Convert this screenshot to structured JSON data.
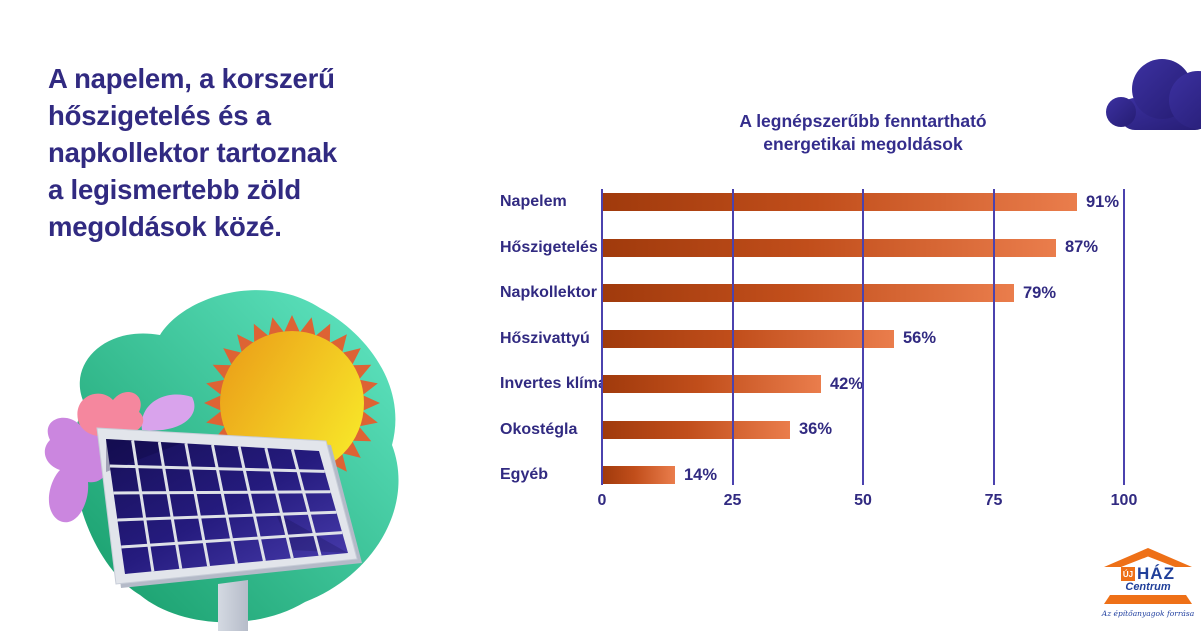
{
  "headline_lines": [
    "A napelem, a korszerű",
    "hőszigetelés és a",
    "napkollektor tartoznak",
    "a legismertebb zöld",
    "megoldások közé."
  ],
  "chart_data": {
    "type": "bar",
    "orientation": "horizontal",
    "title": "A legnépszerűbb fenntartható energetikai megoldások",
    "title_lines": [
      "A legnépszerűbb fenntartható",
      "energetikai megoldások"
    ],
    "categories": [
      "Napelem",
      "Hőszigetelés",
      "Napkollektor",
      "Hőszivattyú",
      "Invertes klíma",
      "Okostégla",
      "Egyéb"
    ],
    "values": [
      91,
      87,
      79,
      56,
      42,
      36,
      14
    ],
    "value_labels": [
      "91%",
      "87%",
      "79%",
      "56%",
      "42%",
      "36%",
      "14%"
    ],
    "xlim": [
      0,
      100
    ],
    "xticks": [
      0,
      25,
      50,
      75,
      100
    ],
    "grid": true,
    "legend": "none"
  },
  "illustration": {
    "elements": [
      "green-blob",
      "pink-leaves",
      "purple-leaves",
      "sun-icon",
      "solar-panel-icon",
      "panel-pole"
    ]
  },
  "decor": {
    "cloud_icon": "cloud-icon"
  },
  "logo": {
    "line1_prefix": "ÚJ",
    "line1_main": "HÁZ",
    "line2": "Centrum",
    "tagline": "Az építőanyagok forrása"
  },
  "colors": {
    "text_indigo": "#312A81",
    "gridline": "#4B42AE",
    "bar_gradient_start": "#A03A0C",
    "bar_gradient_end": "#EA7D4C",
    "blob_green_dark": "#149A67",
    "blob_green_light": "#63E8C5",
    "sun_gold": "#EBA019",
    "sun_yellow": "#F8E829",
    "sun_rays": "#DD6334",
    "panel_cell_navy": "#1A1260",
    "pink_leaf": "#F5879E",
    "purple_leaf": "#CB86DF",
    "cloud_indigo": "#2F268C",
    "logo_orange": "#EE7017",
    "logo_blue": "#21409A"
  }
}
